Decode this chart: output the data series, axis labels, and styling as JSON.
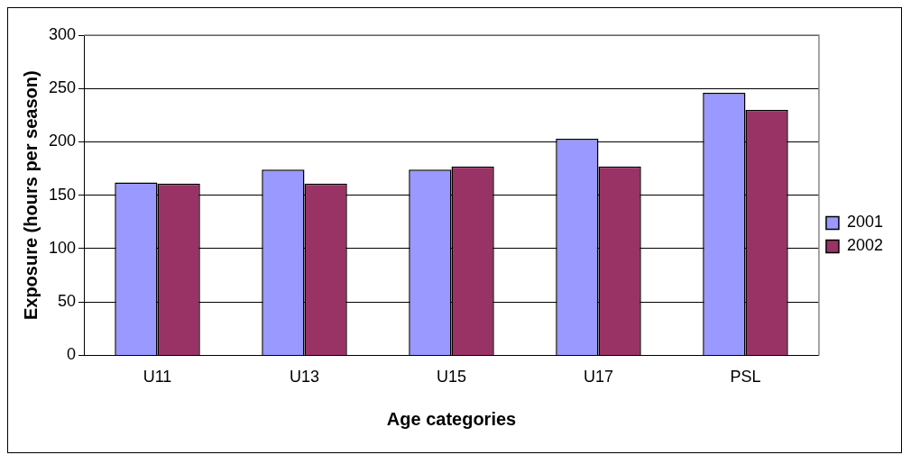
{
  "chart_data": {
    "type": "bar",
    "xlabel": "Age categories",
    "ylabel": "Exposure (hours per season)",
    "categories": [
      "U11",
      "U13",
      "U15",
      "U17",
      "PSL"
    ],
    "series": [
      {
        "name": "2001",
        "color": "#9999ff",
        "values": [
          162,
          174,
          174,
          203,
          246
        ]
      },
      {
        "name": "2002",
        "color": "#993366",
        "values": [
          161,
          161,
          177,
          177,
          230
        ]
      }
    ],
    "ylim": [
      0,
      300
    ],
    "yticks": [
      0,
      50,
      100,
      150,
      200,
      250,
      300
    ],
    "grid": "y",
    "legend": "right"
  }
}
